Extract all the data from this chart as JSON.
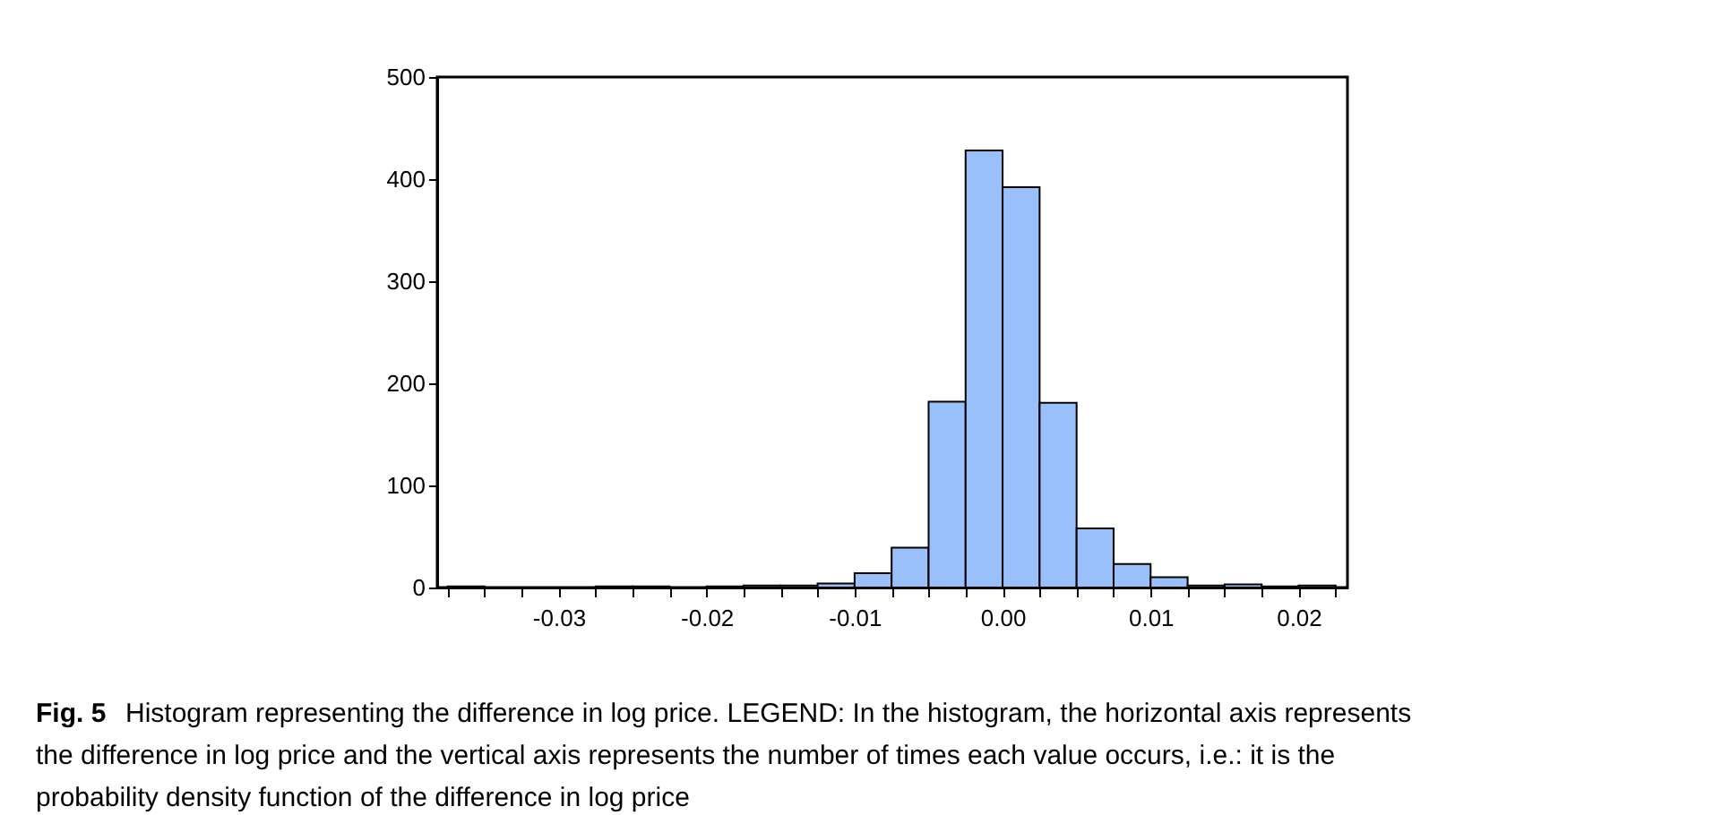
{
  "chart_data": {
    "type": "histogram",
    "title": "Fig. 5",
    "annotations": [
      "Histogram representing the difference in log price. LEGEND: In the histogram, the horizontal axis represents the difference in log price and the vertical axis represents the number of times each value occurs, i.e.: it is the probability density function of the difference in log price"
    ],
    "bins": [
      -0.0375,
      -0.035,
      -0.0325,
      -0.03,
      -0.0275,
      -0.025,
      -0.0225,
      -0.02,
      -0.0175,
      -0.015,
      -0.0125,
      -0.01,
      -0.0075,
      -0.005,
      -0.0025,
      0,
      0.0025,
      0.005,
      0.0075,
      0.01,
      0.0125,
      0.015,
      0.0175,
      0.02,
      0.0225
    ],
    "values": [
      1,
      0,
      0,
      0,
      1,
      1,
      0,
      1,
      2,
      2,
      4,
      14,
      39,
      182,
      428,
      392,
      181,
      58,
      23,
      10,
      2,
      3,
      1,
      2
    ],
    "color": "#9ac0fb",
    "xlim": [
      -0.0382,
      0.0233
    ],
    "ylim": [
      0,
      500
    ],
    "xticks": [
      {
        "value": -0.0375,
        "label": null
      },
      {
        "value": -0.035,
        "label": null
      },
      {
        "value": -0.0325,
        "label": null
      },
      {
        "value": -0.03,
        "label": "-0.03"
      },
      {
        "value": -0.0275,
        "label": null
      },
      {
        "value": -0.025,
        "label": null
      },
      {
        "value": -0.0225,
        "label": null
      },
      {
        "value": -0.02,
        "label": "-0.02"
      },
      {
        "value": -0.0175,
        "label": null
      },
      {
        "value": -0.015,
        "label": null
      },
      {
        "value": -0.0125,
        "label": null
      },
      {
        "value": -0.01,
        "label": "-0.01"
      },
      {
        "value": -0.0075,
        "label": null
      },
      {
        "value": -0.005,
        "label": null
      },
      {
        "value": -0.0025,
        "label": null
      },
      {
        "value": 0,
        "label": "0.00"
      },
      {
        "value": 0.0025,
        "label": null
      },
      {
        "value": 0.005,
        "label": null
      },
      {
        "value": 0.0075,
        "label": null
      },
      {
        "value": 0.01,
        "label": "0.01"
      },
      {
        "value": 0.0125,
        "label": null
      },
      {
        "value": 0.015,
        "label": null
      },
      {
        "value": 0.0175,
        "label": null
      },
      {
        "value": 0.02,
        "label": "0.02"
      },
      {
        "value": 0.0225,
        "label": null
      }
    ],
    "yticks": [
      0,
      100,
      200,
      300,
      400,
      500
    ],
    "grid": false
  }
}
